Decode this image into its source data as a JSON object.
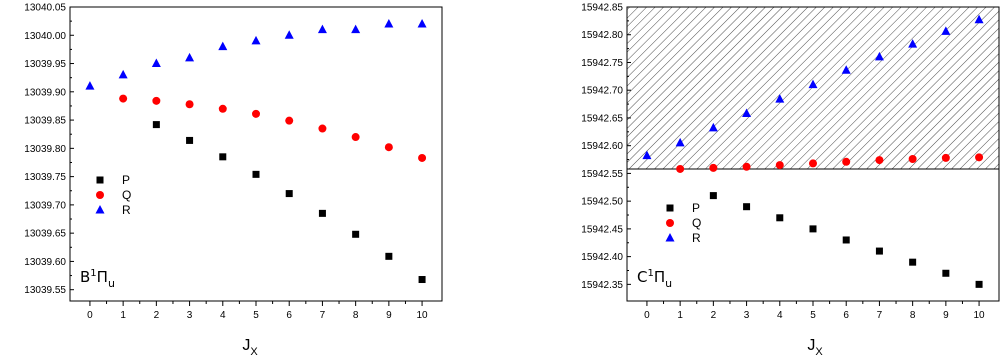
{
  "chart_data": [
    {
      "type": "scatter",
      "title": "",
      "annotation": {
        "base": "B",
        "sup": "1",
        "pi": "Π",
        "sub": "u"
      },
      "xlabel": {
        "base": "J",
        "sub": "X"
      },
      "ylabel": "",
      "x_ticks": [
        0,
        1,
        2,
        3,
        4,
        5,
        6,
        7,
        8,
        9,
        10
      ],
      "xlim": [
        -0.6,
        10.6
      ],
      "ylim": [
        13039.53,
        13040.05
      ],
      "y_ticks": [
        13039.55,
        13039.6,
        13039.65,
        13039.7,
        13039.75,
        13039.8,
        13039.85,
        13039.9,
        13039.95,
        13040.0,
        13040.05
      ],
      "y_tick_labels": [
        "13039.55",
        "13039.60",
        "13039.65",
        "13039.70",
        "13039.75",
        "13039.80",
        "13039.85",
        "13039.90",
        "13039.95",
        "13040.00",
        "13040.05"
      ],
      "legend_position": "left-middle",
      "series": [
        {
          "name": "P",
          "marker": "square",
          "color": "#000000",
          "x": [
            2,
            3,
            4,
            5,
            6,
            7,
            8,
            9,
            10
          ],
          "y": [
            13039.842,
            13039.814,
            13039.785,
            13039.754,
            13039.72,
            13039.685,
            13039.648,
            13039.609,
            13039.568
          ]
        },
        {
          "name": "Q",
          "marker": "circle",
          "color": "#ff0000",
          "x": [
            1,
            2,
            3,
            4,
            5,
            6,
            7,
            8,
            9,
            10
          ],
          "y": [
            13039.888,
            13039.884,
            13039.878,
            13039.87,
            13039.861,
            13039.849,
            13039.835,
            13039.82,
            13039.802,
            13039.783
          ]
        },
        {
          "name": "R",
          "marker": "triangle",
          "color": "#0000ff",
          "x": [
            0,
            1,
            2,
            3,
            4,
            5,
            6,
            7,
            8,
            9,
            10
          ],
          "y": [
            13039.91,
            13039.93,
            13039.95,
            13039.96,
            13039.98,
            13039.99,
            13040.0,
            13040.01,
            13040.01,
            13040.02,
            13040.02
          ]
        }
      ]
    },
    {
      "type": "scatter",
      "title": "",
      "annotation": {
        "base": "C",
        "sup": "1",
        "pi": "Π",
        "sub": "u"
      },
      "xlabel": {
        "base": "J",
        "sub": "X"
      },
      "ylabel": "",
      "x_ticks": [
        0,
        1,
        2,
        3,
        4,
        5,
        6,
        7,
        8,
        9,
        10
      ],
      "xlim": [
        -0.6,
        10.6
      ],
      "ylim": [
        15942.32,
        15942.85
      ],
      "y_ticks": [
        15942.35,
        15942.4,
        15942.45,
        15942.5,
        15942.55,
        15942.6,
        15942.65,
        15942.7,
        15942.75,
        15942.8,
        15942.85
      ],
      "y_tick_labels": [
        "15942.35",
        "15942.40",
        "15942.45",
        "15942.50",
        "15942.55",
        "15942.60",
        "15942.65",
        "15942.70",
        "15942.75",
        "15942.80",
        "15942.85"
      ],
      "hatched_region": [
        15942.558,
        15942.85
      ],
      "legend_position": "left-middle",
      "series": [
        {
          "name": "P",
          "marker": "square",
          "color": "#000000",
          "x": [
            2,
            3,
            4,
            5,
            6,
            7,
            8,
            9,
            10
          ],
          "y": [
            15942.51,
            15942.49,
            15942.47,
            15942.45,
            15942.43,
            15942.41,
            15942.39,
            15942.37,
            15942.35
          ]
        },
        {
          "name": "Q",
          "marker": "circle",
          "color": "#ff0000",
          "x": [
            1,
            2,
            3,
            4,
            5,
            6,
            7,
            8,
            9,
            10
          ],
          "y": [
            15942.558,
            15942.56,
            15942.562,
            15942.565,
            15942.568,
            15942.571,
            15942.574,
            15942.576,
            15942.578,
            15942.579
          ]
        },
        {
          "name": "R",
          "marker": "triangle",
          "color": "#0000ff",
          "x": [
            0,
            1,
            2,
            3,
            4,
            5,
            6,
            7,
            8,
            9,
            10
          ],
          "y": [
            15942.582,
            15942.605,
            15942.632,
            15942.658,
            15942.684,
            15942.71,
            15942.736,
            15942.76,
            15942.783,
            15942.806,
            15942.827
          ]
        }
      ]
    }
  ]
}
